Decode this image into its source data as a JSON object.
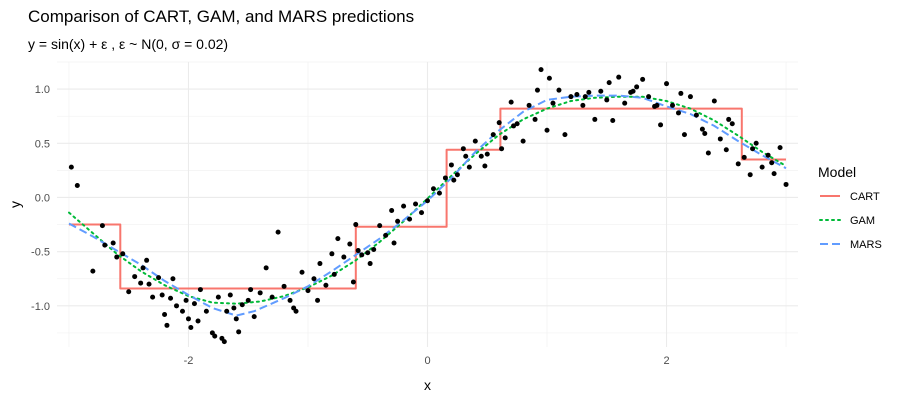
{
  "chart_data": {
    "type": "scatter",
    "title": "Comparison of CART, GAM, and MARS predictions",
    "subtitle": "y = sin(x) + ε , ε ~ N(0, σ = 0.02)",
    "xlabel": "x",
    "ylabel": "y",
    "xlim": [
      -3.1,
      3.1
    ],
    "ylim": [
      -1.38,
      1.25
    ],
    "x_ticks": [
      -2,
      0,
      2
    ],
    "y_ticks": [
      -1.0,
      -0.5,
      0.0,
      0.5,
      1.0
    ],
    "x_tick_labels": [
      "-2",
      "0",
      "2"
    ],
    "y_tick_labels": [
      "-1.0",
      "-0.5",
      "0.0",
      "0.5",
      "1.0"
    ],
    "grid": true,
    "legend": {
      "title": "Model",
      "position": "right",
      "entries": [
        {
          "label": "CART",
          "color": "#F8766D",
          "dash": "solid"
        },
        {
          "label": "GAM",
          "color": "#00BA38",
          "dash": "dotted"
        },
        {
          "label": "MARS",
          "color": "#619CFF",
          "dash": "dashed"
        }
      ]
    },
    "points": {
      "color": "#000000",
      "x": [
        -2.98,
        -2.93,
        -2.8,
        -2.72,
        -2.7,
        -2.63,
        -2.55,
        -2.5,
        -2.45,
        -2.4,
        -2.38,
        -2.33,
        -2.3,
        -2.25,
        -2.22,
        -2.2,
        -2.18,
        -2.15,
        -2.13,
        -2.1,
        -2.05,
        -2.02,
        -2.0,
        -1.98,
        -1.95,
        -1.9,
        -1.85,
        -1.8,
        -1.75,
        -1.72,
        -1.7,
        -1.68,
        -1.65,
        -1.62,
        -1.6,
        -1.55,
        -1.5,
        -1.48,
        -1.45,
        -1.4,
        -1.35,
        -1.3,
        -1.25,
        -1.2,
        -1.15,
        -1.1,
        -1.05,
        -1.0,
        -0.95,
        -0.9,
        -0.85,
        -0.8,
        -0.75,
        -0.7,
        -0.65,
        -0.6,
        -0.55,
        -0.5,
        -0.45,
        -0.4,
        -0.35,
        -0.3,
        -0.25,
        -0.2,
        -0.15,
        -0.1,
        -0.05,
        0.0,
        0.05,
        0.1,
        0.15,
        0.2,
        0.25,
        0.3,
        0.35,
        0.4,
        0.45,
        0.5,
        0.55,
        0.6,
        0.65,
        0.7,
        0.75,
        0.8,
        0.85,
        0.9,
        0.95,
        1.0,
        1.05,
        1.1,
        1.15,
        1.2,
        1.25,
        1.3,
        1.35,
        1.4,
        1.45,
        1.5,
        1.55,
        1.6,
        1.65,
        1.7,
        1.75,
        1.8,
        1.85,
        1.9,
        1.95,
        2.0,
        2.05,
        2.1,
        2.15,
        2.2,
        2.25,
        2.3,
        2.35,
        2.4,
        2.45,
        2.5,
        2.55,
        2.6,
        2.65,
        2.7,
        2.75,
        2.8,
        2.85,
        2.9,
        2.95,
        3.0,
        -2.6,
        -2.35,
        -1.92,
        -1.78,
        -1.58,
        -1.12,
        -0.92,
        -0.78,
        -0.62,
        -0.58,
        -0.48,
        -0.28,
        0.22,
        0.32,
        0.48,
        0.62,
        0.72,
        0.92,
        1.02,
        1.32,
        1.52,
        1.72,
        1.92,
        2.12,
        2.32,
        2.52,
        2.72,
        2.88
      ],
      "y": [
        0.28,
        0.11,
        -0.68,
        -0.26,
        -0.44,
        -0.42,
        -0.52,
        -0.87,
        -0.73,
        -0.79,
        -0.65,
        -0.8,
        -0.92,
        -0.74,
        -0.9,
        -1.08,
        -1.18,
        -0.93,
        -0.75,
        -1.0,
        -1.05,
        -0.95,
        -1.12,
        -1.2,
        -0.98,
        -0.85,
        -1.05,
        -1.25,
        -0.92,
        -1.3,
        -1.33,
        -1.05,
        -0.9,
        -1.02,
        -1.12,
        -0.99,
        -0.95,
        -0.85,
        -1.1,
        -0.88,
        -0.65,
        -0.92,
        -0.32,
        -0.82,
        -0.95,
        -1.05,
        -0.69,
        -0.86,
        -0.75,
        -0.61,
        -0.81,
        -0.52,
        -0.38,
        -0.55,
        -0.43,
        -0.25,
        -0.53,
        -0.51,
        -0.48,
        -0.26,
        -0.35,
        -0.12,
        -0.22,
        -0.08,
        -0.2,
        -0.06,
        -0.14,
        -0.03,
        0.08,
        0.04,
        0.18,
        0.3,
        0.21,
        0.45,
        0.28,
        0.52,
        0.38,
        0.4,
        0.58,
        0.69,
        0.55,
        0.88,
        0.68,
        0.52,
        0.85,
        0.72,
        1.18,
        0.62,
        0.87,
        0.99,
        0.58,
        0.93,
        0.95,
        0.85,
        0.97,
        0.72,
        0.98,
        0.9,
        0.71,
        1.11,
        0.87,
        0.97,
        1.02,
        1.09,
        0.93,
        0.84,
        0.67,
        1.05,
        0.85,
        0.78,
        0.58,
        0.93,
        0.76,
        0.63,
        0.41,
        0.89,
        0.54,
        0.44,
        0.68,
        0.31,
        0.37,
        0.21,
        0.5,
        0.28,
        0.39,
        0.22,
        0.46,
        0.12,
        -0.55,
        -0.58,
        -1.14,
        -1.28,
        -1.24,
        -1.02,
        -0.95,
        -0.71,
        -0.78,
        -0.49,
        -0.61,
        -0.42,
        0.16,
        0.38,
        0.29,
        0.45,
        0.66,
        0.99,
        1.1,
        0.93,
        1.06,
        0.98,
        0.85,
        0.96,
        0.59,
        0.72,
        0.45,
        0.32
      ]
    },
    "series": [
      {
        "name": "CART",
        "x": [
          -3.0,
          -2.62,
          -2.62,
          -2.57,
          -2.57,
          -0.6,
          -0.6,
          0.16,
          0.16,
          0.61,
          0.61,
          2.63,
          2.63,
          3.0
        ],
        "y": [
          -0.25,
          -0.25,
          -0.25,
          -0.25,
          -0.84,
          -0.84,
          -0.27,
          -0.27,
          0.44,
          0.44,
          0.82,
          0.82,
          0.35,
          0.35
        ]
      },
      {
        "name": "GAM",
        "x": [
          -3.0,
          -2.8,
          -2.6,
          -2.4,
          -2.2,
          -2.0,
          -1.8,
          -1.6,
          -1.4,
          -1.2,
          -1.0,
          -0.8,
          -0.6,
          -0.4,
          -0.2,
          0.0,
          0.2,
          0.4,
          0.6,
          0.8,
          1.0,
          1.2,
          1.4,
          1.6,
          1.8,
          2.0,
          2.2,
          2.4,
          2.6,
          2.8,
          3.0
        ],
        "y": [
          -0.14,
          -0.33,
          -0.52,
          -0.68,
          -0.81,
          -0.91,
          -0.97,
          -0.98,
          -0.96,
          -0.91,
          -0.83,
          -0.72,
          -0.58,
          -0.41,
          -0.22,
          -0.01,
          0.2,
          0.4,
          0.58,
          0.72,
          0.82,
          0.89,
          0.92,
          0.93,
          0.93,
          0.89,
          0.82,
          0.71,
          0.57,
          0.42,
          0.29
        ]
      },
      {
        "name": "MARS",
        "x": [
          -3.0,
          -2.8,
          -2.6,
          -2.4,
          -2.2,
          -2.0,
          -1.8,
          -1.6,
          -1.45,
          -1.2,
          -1.0,
          -0.8,
          -0.6,
          -0.4,
          -0.2,
          0.0,
          0.2,
          0.4,
          0.6,
          0.8,
          1.0,
          1.2,
          1.4,
          1.6,
          1.8,
          2.0,
          2.2,
          2.4,
          2.6,
          2.8,
          3.0
        ],
        "y": [
          -0.24,
          -0.36,
          -0.49,
          -0.62,
          -0.77,
          -0.9,
          -1.02,
          -1.09,
          -1.05,
          -0.93,
          -0.82,
          -0.68,
          -0.53,
          -0.38,
          -0.21,
          -0.03,
          0.18,
          0.42,
          0.62,
          0.79,
          0.9,
          0.93,
          0.94,
          0.94,
          0.92,
          0.84,
          0.77,
          0.66,
          0.52,
          0.39,
          0.27
        ]
      }
    ]
  }
}
